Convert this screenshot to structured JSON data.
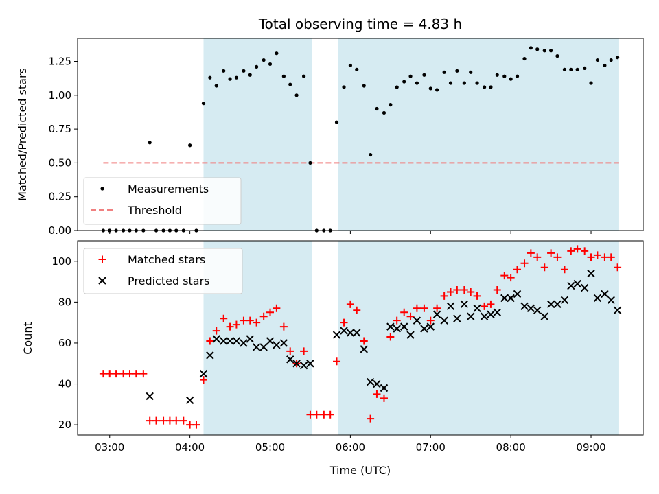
{
  "chart_data": [
    {
      "type": "scatter",
      "title": "Total observing time = 4.83 h",
      "xlabel": "",
      "ylabel": "Matched/Predicted stars",
      "xlim": [
        2.6,
        9.65
      ],
      "ylim": [
        0,
        1.42
      ],
      "yticks": [
        0.0,
        0.25,
        0.5,
        0.75,
        1.0,
        1.25
      ],
      "ytick_labels": [
        "0.00",
        "0.25",
        "0.50",
        "0.75",
        "1.00",
        "1.25"
      ],
      "xticks": [
        3,
        4,
        5,
        6,
        7,
        8,
        9
      ],
      "shaded_regions": [
        [
          4.17,
          5.52
        ],
        [
          5.85,
          9.35
        ]
      ],
      "threshold": {
        "name": "Threshold",
        "value": 0.5,
        "x": [
          2.92,
          9.35
        ],
        "color": "#f08080"
      },
      "legend": [
        "Measurements",
        "Threshold"
      ],
      "legend_position": "lower-left",
      "series": [
        {
          "name": "Measurements",
          "color": "#000000",
          "x": [
            2.92,
            3.0,
            3.08,
            3.17,
            3.25,
            3.33,
            3.42,
            3.5,
            3.58,
            3.67,
            3.75,
            3.83,
            3.92,
            4.0,
            4.08,
            4.17,
            4.25,
            4.33,
            4.42,
            4.5,
            4.58,
            4.67,
            4.75,
            4.83,
            4.92,
            5.0,
            5.08,
            5.17,
            5.25,
            5.33,
            5.42,
            5.5,
            5.58,
            5.67,
            5.75,
            5.83,
            5.92,
            6.0,
            6.08,
            6.17,
            6.25,
            6.33,
            6.42,
            6.5,
            6.58,
            6.67,
            6.75,
            6.83,
            6.92,
            7.0,
            7.08,
            7.17,
            7.25,
            7.33,
            7.42,
            7.5,
            7.58,
            7.67,
            7.75,
            7.83,
            7.92,
            8.0,
            8.08,
            8.17,
            8.25,
            8.33,
            8.42,
            8.5,
            8.58,
            8.67,
            8.75,
            8.83,
            8.92,
            9.0,
            9.08,
            9.17,
            9.25,
            9.33
          ],
          "y": [
            0.0,
            0.0,
            0.0,
            0.0,
            0.0,
            0.0,
            0.0,
            0.65,
            0.0,
            0.0,
            0.0,
            0.0,
            0.0,
            0.63,
            0.0,
            0.94,
            1.13,
            1.07,
            1.18,
            1.12,
            1.13,
            1.18,
            1.15,
            1.21,
            1.26,
            1.23,
            1.31,
            1.14,
            1.08,
            1.0,
            1.14,
            0.5,
            0.0,
            0.0,
            0.0,
            0.8,
            1.06,
            1.22,
            1.19,
            1.07,
            0.56,
            0.9,
            0.87,
            0.93,
            1.06,
            1.1,
            1.14,
            1.09,
            1.15,
            1.05,
            1.04,
            1.17,
            1.09,
            1.18,
            1.09,
            1.17,
            1.09,
            1.06,
            1.06,
            1.15,
            1.14,
            1.12,
            1.14,
            1.27,
            1.35,
            1.34,
            1.33,
            1.33,
            1.29,
            1.19,
            1.19,
            1.19,
            1.2,
            1.09,
            1.26,
            1.22,
            1.26,
            1.28
          ]
        }
      ]
    },
    {
      "type": "scatter",
      "title": "",
      "xlabel": "Time (UTC)",
      "ylabel": "Count",
      "xlim": [
        2.6,
        9.65
      ],
      "ylim": [
        15,
        110
      ],
      "yticks": [
        20,
        40,
        60,
        80,
        100
      ],
      "ytick_labels": [
        "20",
        "40",
        "60",
        "80",
        "100"
      ],
      "xticks": [
        3,
        4,
        5,
        6,
        7,
        8,
        9
      ],
      "xtick_labels": [
        "03:00",
        "04:00",
        "05:00",
        "06:00",
        "07:00",
        "08:00",
        "09:00"
      ],
      "shaded_regions": [
        [
          4.17,
          5.52
        ],
        [
          5.85,
          9.35
        ]
      ],
      "legend": [
        "Matched stars",
        "Predicted stars"
      ],
      "legend_position": "upper-left",
      "series": [
        {
          "name": "Matched stars",
          "marker": "plus",
          "color": "#ff0000",
          "x": [
            2.92,
            3.0,
            3.08,
            3.17,
            3.25,
            3.33,
            3.42,
            3.5,
            3.58,
            3.67,
            3.75,
            3.83,
            3.92,
            4.0,
            4.08,
            4.17,
            4.25,
            4.33,
            4.42,
            4.5,
            4.58,
            4.67,
            4.75,
            4.83,
            4.92,
            5.0,
            5.08,
            5.17,
            5.25,
            5.33,
            5.42,
            5.5,
            5.58,
            5.67,
            5.75,
            5.83,
            5.92,
            6.0,
            6.08,
            6.17,
            6.25,
            6.33,
            6.42,
            6.5,
            6.58,
            6.67,
            6.75,
            6.83,
            6.92,
            7.0,
            7.08,
            7.17,
            7.25,
            7.33,
            7.42,
            7.5,
            7.58,
            7.67,
            7.75,
            7.83,
            7.92,
            8.0,
            8.08,
            8.17,
            8.25,
            8.33,
            8.42,
            8.5,
            8.58,
            8.67,
            8.75,
            8.83,
            8.92,
            9.0,
            9.08,
            9.17,
            9.25,
            9.33
          ],
          "y": [
            45,
            45,
            45,
            45,
            45,
            45,
            45,
            22,
            22,
            22,
            22,
            22,
            22,
            20,
            20,
            42,
            61,
            66,
            72,
            68,
            69,
            71,
            71,
            70,
            73,
            75,
            77,
            68,
            56,
            50,
            56,
            25,
            25,
            25,
            25,
            51,
            70,
            79,
            76,
            61,
            23,
            35,
            33,
            63,
            71,
            75,
            73,
            77,
            77,
            71,
            77,
            83,
            85,
            86,
            86,
            85,
            83,
            78,
            79,
            86,
            93,
            92,
            96,
            99,
            104,
            102,
            97,
            104,
            102,
            96,
            105,
            106,
            105,
            102,
            103,
            102,
            102,
            97
          ]
        },
        {
          "name": "Predicted stars",
          "marker": "x",
          "color": "#000000",
          "x": [
            3.5,
            4.0,
            4.17,
            4.25,
            4.33,
            4.42,
            4.5,
            4.58,
            4.67,
            4.75,
            4.83,
            4.92,
            5.0,
            5.08,
            5.17,
            5.25,
            5.33,
            5.42,
            5.5,
            5.83,
            5.92,
            6.0,
            6.08,
            6.17,
            6.25,
            6.33,
            6.42,
            6.5,
            6.58,
            6.67,
            6.75,
            6.83,
            6.92,
            7.0,
            7.08,
            7.17,
            7.25,
            7.33,
            7.42,
            7.5,
            7.58,
            7.67,
            7.75,
            7.83,
            7.92,
            8.0,
            8.08,
            8.17,
            8.25,
            8.33,
            8.42,
            8.5,
            8.58,
            8.67,
            8.75,
            8.83,
            8.92,
            9.0,
            9.08,
            9.17,
            9.25,
            9.33
          ],
          "y": [
            34,
            32,
            45,
            54,
            62,
            61,
            61,
            61,
            60,
            62,
            58,
            58,
            61,
            59,
            60,
            52,
            50,
            49,
            50,
            64,
            66,
            65,
            65,
            57,
            41,
            40,
            38,
            68,
            67,
            68,
            64,
            71,
            67,
            68,
            74,
            71,
            78,
            72,
            79,
            73,
            77,
            73,
            74,
            75,
            82,
            82,
            84,
            78,
            77,
            76,
            73,
            79,
            79,
            81,
            88,
            89,
            87,
            94,
            82,
            84,
            81,
            76
          ]
        }
      ]
    }
  ]
}
